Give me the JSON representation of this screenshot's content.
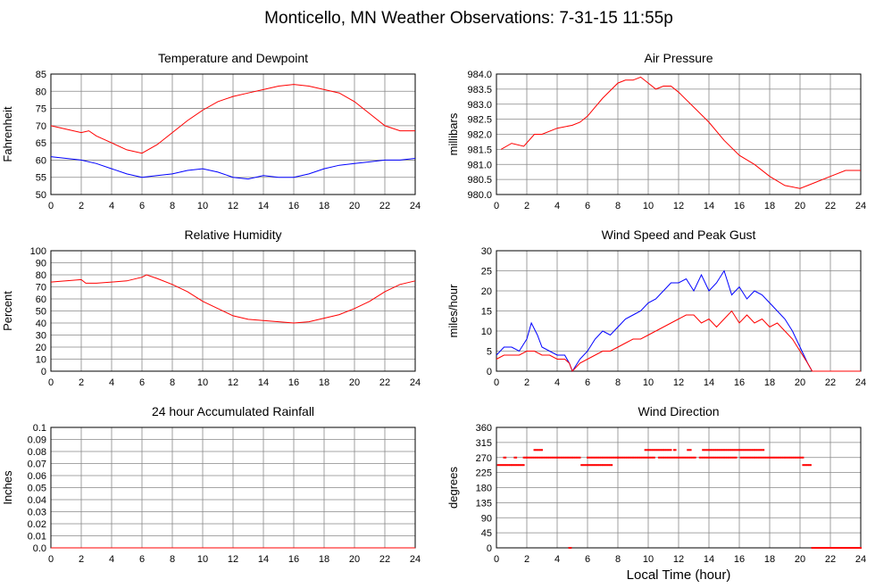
{
  "page": {
    "title": "Monticello, MN Weather Observations: 7-31-15 11:55p",
    "xlabel": "Local Time (hour)"
  },
  "colors": {
    "red": "#ff0000",
    "blue": "#0000ff",
    "grid": "#888888"
  },
  "chart_data": [
    {
      "id": "temp",
      "type": "line",
      "title": "Temperature and Dewpoint",
      "ylabel": "Fahrenheit",
      "xlim": [
        0,
        24
      ],
      "xticks": [
        "0",
        "2",
        "4",
        "6",
        "8",
        "10",
        "12",
        "14",
        "16",
        "18",
        "20",
        "22",
        "24"
      ],
      "ylim": [
        50,
        85
      ],
      "yticks": [
        "50",
        "55",
        "60",
        "65",
        "70",
        "75",
        "80",
        "85"
      ],
      "grid": true,
      "series": [
        {
          "color": "#ff0000",
          "x": [
            0,
            1,
            2,
            2.5,
            3,
            4,
            5,
            6,
            7,
            8,
            9,
            10,
            11,
            12,
            13,
            14,
            15,
            16,
            17,
            18,
            19,
            20,
            21,
            22,
            23,
            24
          ],
          "y": [
            70,
            69,
            68,
            68.5,
            67,
            65,
            63,
            62,
            64.5,
            68,
            71.5,
            74.5,
            77,
            78.5,
            79.5,
            80.5,
            81.5,
            82,
            81.5,
            80.5,
            79.5,
            77,
            73.5,
            70,
            68.5,
            68.5
          ]
        },
        {
          "color": "#0000ff",
          "x": [
            0,
            1,
            2,
            3,
            4,
            5,
            6,
            7,
            8,
            9,
            10,
            11,
            12,
            13,
            14,
            15,
            16,
            17,
            18,
            19,
            20,
            21,
            22,
            23,
            24
          ],
          "y": [
            61,
            60.5,
            60,
            59,
            57.5,
            56,
            55,
            55.5,
            56,
            57,
            57.5,
            56.5,
            55,
            54.5,
            55.5,
            55,
            55,
            56,
            57.5,
            58.5,
            59,
            59.5,
            60,
            60,
            60.5
          ]
        }
      ]
    },
    {
      "id": "pressure",
      "type": "line",
      "title": "Air Pressure",
      "ylabel": "millibars",
      "xlim": [
        0,
        24
      ],
      "xticks": [
        "0",
        "2",
        "4",
        "6",
        "8",
        "10",
        "12",
        "14",
        "16",
        "18",
        "20",
        "22",
        "24"
      ],
      "ylim": [
        980,
        984
      ],
      "yticks": [
        "980.0",
        "980.5",
        "981.0",
        "981.5",
        "982.0",
        "982.5",
        "983.0",
        "983.5",
        "984.0"
      ],
      "grid": true,
      "series": [
        {
          "color": "#ff0000",
          "x": [
            0.3,
            1,
            1.8,
            2.5,
            3,
            4,
            5,
            5.5,
            6,
            6.5,
            7,
            8,
            8.5,
            9,
            9.5,
            10,
            10.5,
            11,
            11.5,
            12,
            13,
            14,
            15,
            16,
            17,
            18,
            19,
            20,
            20.5,
            21,
            22,
            23,
            24
          ],
          "y": [
            981.5,
            981.7,
            981.6,
            982.0,
            982.0,
            982.2,
            982.3,
            982.4,
            982.6,
            982.9,
            983.2,
            983.7,
            983.8,
            983.8,
            983.9,
            983.7,
            983.5,
            983.6,
            983.6,
            983.4,
            982.9,
            982.4,
            981.8,
            981.3,
            981.0,
            980.6,
            980.3,
            980.2,
            980.3,
            980.4,
            980.6,
            980.8,
            980.8
          ]
        }
      ]
    },
    {
      "id": "humidity",
      "type": "line",
      "title": "Relative Humidity",
      "ylabel": "Percent",
      "xlim": [
        0,
        24
      ],
      "xticks": [
        "0",
        "2",
        "4",
        "6",
        "8",
        "10",
        "12",
        "14",
        "16",
        "18",
        "20",
        "22",
        "24"
      ],
      "ylim": [
        0,
        100
      ],
      "yticks": [
        "0",
        "10",
        "20",
        "30",
        "40",
        "50",
        "60",
        "70",
        "80",
        "90",
        "100"
      ],
      "grid": true,
      "series": [
        {
          "color": "#ff0000",
          "x": [
            0,
            1,
            2,
            2.3,
            3,
            4,
            5,
            6,
            6.3,
            7,
            8,
            9,
            10,
            11,
            12,
            13,
            14,
            15,
            16,
            17,
            18,
            19,
            20,
            21,
            22,
            23,
            24
          ],
          "y": [
            74,
            75,
            76,
            73,
            73,
            74,
            75,
            78,
            80,
            77,
            72,
            66,
            58,
            52,
            46,
            43,
            42,
            41,
            40,
            41,
            44,
            47,
            52,
            58,
            66,
            72,
            75
          ]
        }
      ]
    },
    {
      "id": "wind",
      "type": "line",
      "title": "Wind Speed and Peak Gust",
      "ylabel": "miles/hour",
      "xlim": [
        0,
        24
      ],
      "xticks": [
        "0",
        "2",
        "4",
        "6",
        "8",
        "10",
        "12",
        "14",
        "16",
        "18",
        "20",
        "22",
        "24"
      ],
      "ylim": [
        0,
        30
      ],
      "yticks": [
        "0",
        "5",
        "10",
        "15",
        "20",
        "25",
        "30"
      ],
      "grid": true,
      "series": [
        {
          "color": "#0000ff",
          "x": [
            0,
            0.5,
            1,
            1.5,
            2,
            2.3,
            2.7,
            3,
            3.5,
            4,
            4.5,
            4.8,
            5,
            5.5,
            6,
            6.5,
            7,
            7.5,
            8,
            8.5,
            9,
            9.5,
            10,
            10.5,
            11,
            11.5,
            12,
            12.5,
            13,
            13.5,
            14,
            14.5,
            15,
            15.5,
            16,
            16.5,
            17,
            17.5,
            18,
            18.5,
            19,
            19.5,
            20,
            20.5,
            20.8,
            21,
            22,
            23,
            24
          ],
          "y": [
            4,
            6,
            6,
            5,
            8,
            12,
            9,
            6,
            5,
            4,
            4,
            2,
            0,
            3,
            5,
            8,
            10,
            9,
            11,
            13,
            14,
            15,
            17,
            18,
            20,
            22,
            22,
            23,
            20,
            24,
            20,
            22,
            25,
            19,
            21,
            18,
            20,
            19,
            17,
            15,
            13,
            10,
            6,
            2,
            0,
            0,
            0,
            0,
            0
          ]
        },
        {
          "color": "#ff0000",
          "x": [
            0,
            0.5,
            1,
            1.5,
            2,
            2.5,
            3,
            3.5,
            4,
            4.5,
            4.8,
            5,
            5.5,
            6,
            6.5,
            7,
            7.5,
            8,
            8.5,
            9,
            9.5,
            10,
            10.5,
            11,
            11.5,
            12,
            12.5,
            13,
            13.5,
            14,
            14.5,
            15,
            15.5,
            16,
            16.5,
            17,
            17.5,
            18,
            18.5,
            19,
            19.5,
            20,
            20.5,
            20.8,
            21,
            22,
            23,
            24
          ],
          "y": [
            3,
            4,
            4,
            4,
            5,
            5,
            4,
            4,
            3,
            3,
            2,
            0,
            2,
            3,
            4,
            5,
            5,
            6,
            7,
            8,
            8,
            9,
            10,
            11,
            12,
            13,
            14,
            14,
            12,
            13,
            11,
            13,
            15,
            12,
            14,
            12,
            13,
            11,
            12,
            10,
            8,
            5,
            2,
            0,
            0,
            0,
            0,
            0
          ]
        }
      ]
    },
    {
      "id": "rain",
      "type": "line",
      "title": "24 hour Accumulated Rainfall",
      "ylabel": "Inches",
      "xlim": [
        0,
        24
      ],
      "xticks": [
        "0",
        "2",
        "4",
        "6",
        "8",
        "10",
        "12",
        "14",
        "16",
        "18",
        "20",
        "22",
        "24"
      ],
      "ylim": [
        0,
        0.1
      ],
      "yticks": [
        "0.0",
        "0.01",
        "0.02",
        "0.03",
        "0.04",
        "0.05",
        "0.06",
        "0.07",
        "0.08",
        "0.09",
        "0.1"
      ],
      "grid": true,
      "series": [
        {
          "color": "#ff0000",
          "x": [
            0,
            24
          ],
          "y": [
            0,
            0
          ]
        }
      ]
    },
    {
      "id": "direction",
      "type": "scatter",
      "title": "Wind Direction",
      "ylabel": "degrees",
      "xlim": [
        0,
        24
      ],
      "xticks": [
        "0",
        "2",
        "4",
        "6",
        "8",
        "10",
        "12",
        "14",
        "16",
        "18",
        "20",
        "22",
        "24"
      ],
      "ylim": [
        0,
        360
      ],
      "yticks": [
        "0",
        "45",
        "90",
        "135",
        "180",
        "225",
        "270",
        "315",
        "360"
      ],
      "grid": true,
      "runs": [
        [
          0.1,
          1.8,
          247.5
        ],
        [
          2.5,
          3.0,
          292.5
        ],
        [
          1.8,
          5.5,
          270
        ],
        [
          0.5,
          0.6,
          270
        ],
        [
          1.2,
          1.3,
          270
        ],
        [
          4.8,
          4.9,
          0
        ],
        [
          5.6,
          7.6,
          247.5
        ],
        [
          6.0,
          8.0,
          270
        ],
        [
          8.0,
          20.2,
          270
        ],
        [
          9.8,
          11.5,
          292.5
        ],
        [
          11.7,
          11.8,
          292.5
        ],
        [
          12.6,
          12.8,
          292.5
        ],
        [
          13.6,
          17.3,
          292.5
        ],
        [
          17.4,
          17.6,
          292.5
        ],
        [
          20.2,
          20.7,
          247.5
        ],
        [
          20.8,
          24,
          0
        ]
      ],
      "gaps": [
        [
          10.4,
          10.6,
          270
        ],
        [
          13.1,
          13.3,
          270
        ],
        [
          15.8,
          16.0,
          270
        ]
      ]
    }
  ]
}
